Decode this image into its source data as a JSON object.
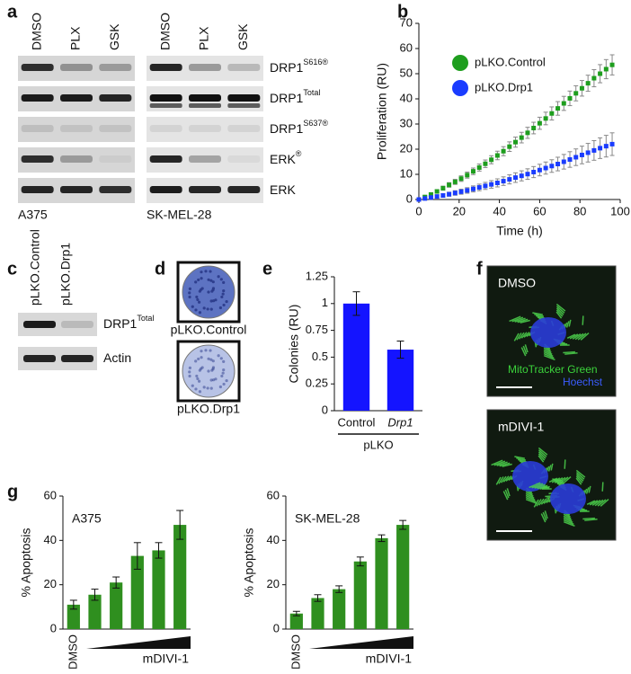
{
  "panel_labels": [
    "a",
    "b",
    "c",
    "d",
    "e",
    "f",
    "g"
  ],
  "blots": {
    "columns": [
      "DMSO",
      "PLX",
      "GSK"
    ],
    "rows": [
      {
        "base": "DRP1",
        "sup": "S616®"
      },
      {
        "base": "DRP1",
        "sup": "Total"
      },
      {
        "base": "DRP1",
        "sup": "S637®"
      },
      {
        "base": "ERK",
        "sup": "®"
      },
      {
        "base": "ERK"
      }
    ],
    "cell_lines": [
      "A375",
      "SK-MEL-28"
    ]
  },
  "knockdown": {
    "lanes": [
      "pLKO.Control",
      "pLKO.Drp1"
    ],
    "rows": [
      {
        "base": "DRP1",
        "sup": "Total"
      },
      {
        "base": "Actin"
      }
    ]
  },
  "dishes": [
    "pLKO.Control",
    "pLKO.Drp1"
  ],
  "micrographs": {
    "panels": [
      "DMSO",
      "mDIVI-1"
    ],
    "stains": [
      "MitoTracker Green",
      "Hoechst"
    ]
  },
  "chart_data": [
    {
      "type": "scatter",
      "xlabel": "Time (h)",
      "ylabel": "Proliferation (RU)",
      "x": [
        0,
        3,
        6,
        9,
        12,
        15,
        18,
        21,
        24,
        27,
        30,
        33,
        36,
        39,
        42,
        45,
        48,
        51,
        54,
        57,
        60,
        63,
        66,
        69,
        72,
        75,
        78,
        81,
        84,
        87,
        90,
        93,
        96
      ],
      "series": [
        {
          "name": "pLKO.Control",
          "color": "#1e9e1e",
          "values": [
            0,
            1,
            2,
            3.2,
            4.5,
            5.8,
            7,
            8.3,
            9.7,
            11.2,
            12.7,
            14.2,
            15.8,
            17.5,
            19.2,
            21,
            22.8,
            24.6,
            26.5,
            28.4,
            30.3,
            32.2,
            34.2,
            36.2,
            38.2,
            40.2,
            42.2,
            44.2,
            46.2,
            48.2,
            50,
            51.8,
            53.5
          ],
          "errors": [
            0.4,
            0.5,
            0.6,
            0.7,
            0.8,
            0.9,
            1,
            1.1,
            1.2,
            1.3,
            1.4,
            1.5,
            1.6,
            1.7,
            1.8,
            1.9,
            2,
            2.1,
            2.2,
            2.3,
            2.4,
            2.5,
            2.6,
            2.7,
            2.8,
            2.9,
            3,
            3.1,
            3.2,
            3.4,
            3.6,
            3.8,
            4
          ]
        },
        {
          "name": "pLKO.Drp1",
          "color": "#1a3cff",
          "values": [
            0,
            0.4,
            0.8,
            1.2,
            1.6,
            2.1,
            2.6,
            3.1,
            3.6,
            4.2,
            4.8,
            5.4,
            6,
            6.6,
            7.3,
            8,
            8.7,
            9.4,
            10.1,
            10.9,
            11.7,
            12.5,
            13.3,
            14.1,
            15,
            15.9,
            16.8,
            17.7,
            18.6,
            19.5,
            20.4,
            21.2,
            22
          ],
          "errors": [
            0.3,
            0.4,
            0.5,
            0.6,
            0.7,
            0.8,
            0.9,
            1,
            1.1,
            1.2,
            1.3,
            1.4,
            1.5,
            1.6,
            1.7,
            1.8,
            1.9,
            2,
            2.1,
            2.2,
            2.3,
            2.4,
            2.5,
            2.7,
            2.9,
            3.1,
            3.3,
            3.5,
            3.7,
            3.9,
            4.1,
            4.3,
            4.5
          ]
        }
      ],
      "xlim": [
        0,
        100
      ],
      "xticks": [
        0,
        20,
        40,
        60,
        80,
        100
      ],
      "ylim": [
        0,
        70
      ],
      "yticks": [
        0,
        10,
        20,
        30,
        40,
        50,
        60,
        70
      ]
    },
    {
      "type": "bar",
      "ylabel": "Colonies (RU)",
      "categories": [
        "Control",
        "Drp1"
      ],
      "group_label": "pLKO",
      "values": [
        1,
        0.57
      ],
      "errors": [
        0.11,
        0.08
      ],
      "color": "#1414ff",
      "ylim": [
        0,
        1.25
      ],
      "yticks": [
        0,
        0.25,
        0.5,
        0.75,
        1,
        1.25
      ]
    },
    {
      "type": "bar",
      "title": "A375",
      "ylabel": "% Apoptosis",
      "categories": [
        "DMSO",
        null,
        null,
        null,
        null,
        null
      ],
      "annotation": "mDIVI-1",
      "values": [
        11,
        15.5,
        21,
        33,
        35.5,
        47
      ],
      "errors": [
        2,
        2.5,
        2.5,
        6,
        3.5,
        6.5
      ],
      "color": "#2f8f1f",
      "ylim": [
        0,
        60
      ],
      "yticks": [
        0,
        20,
        40,
        60
      ]
    },
    {
      "type": "bar",
      "title": "SK-MEL-28",
      "ylabel": "% Apoptosis",
      "categories": [
        "DMSO",
        null,
        null,
        null,
        null,
        null
      ],
      "annotation": "mDIVI-1",
      "values": [
        7,
        14,
        18,
        30.5,
        41,
        47
      ],
      "errors": [
        1,
        1.5,
        1.5,
        2,
        1.5,
        2
      ],
      "color": "#2f8f1f",
      "ylim": [
        0,
        60
      ],
      "yticks": [
        0,
        20,
        40,
        60
      ]
    }
  ]
}
